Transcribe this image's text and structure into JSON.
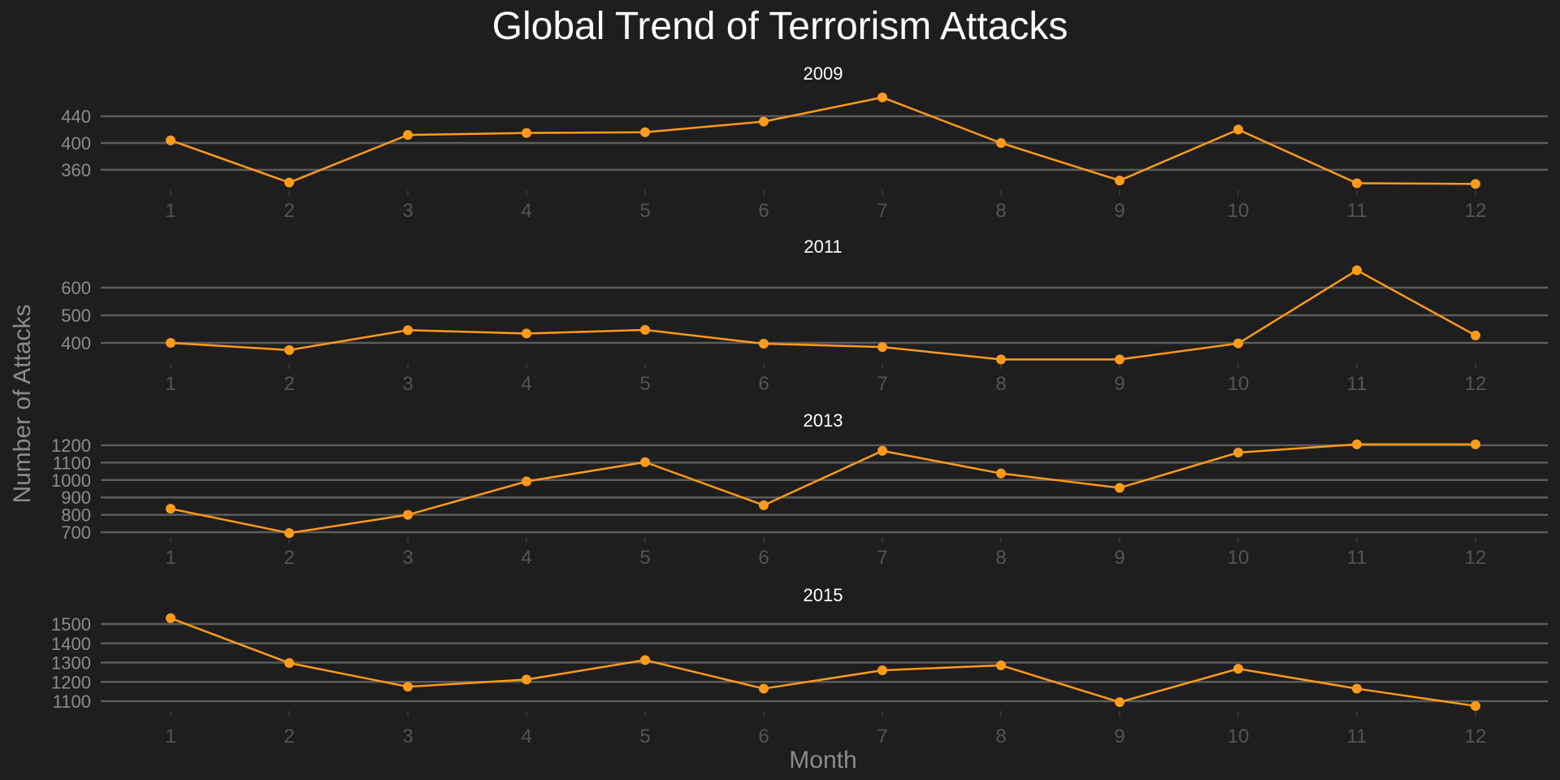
{
  "chart_data": {
    "type": "line",
    "title": "Global Trend of Terrorism Attacks",
    "xlabel": "Month",
    "ylabel": "Number of Attacks",
    "grid": true,
    "x": [
      1,
      2,
      3,
      4,
      5,
      6,
      7,
      8,
      9,
      10,
      11,
      12
    ],
    "colors": {
      "background": "#1e1e1e",
      "line": "#ff9a1a",
      "grid": "#5c5c5c"
    },
    "panels": [
      {
        "title": "2009",
        "yticks": [
          360,
          400,
          440
        ],
        "values": [
          404,
          341,
          412,
          415,
          416,
          432,
          468,
          400,
          344,
          420,
          340,
          339
        ]
      },
      {
        "title": "2011",
        "yticks": [
          400,
          500,
          600
        ],
        "values": [
          400,
          374,
          446,
          434,
          447,
          397,
          385,
          340,
          340,
          398,
          663,
          427
        ]
      },
      {
        "title": "2013",
        "yticks": [
          700,
          800,
          900,
          1000,
          1100,
          1200
        ],
        "values": [
          835,
          695,
          800,
          992,
          1103,
          855,
          1168,
          1038,
          955,
          1158,
          1205,
          1205
        ]
      },
      {
        "title": "2015",
        "yticks": [
          1100,
          1200,
          1300,
          1400,
          1500
        ],
        "values": [
          1530,
          1298,
          1175,
          1212,
          1313,
          1165,
          1260,
          1286,
          1095,
          1268,
          1165,
          1075
        ]
      }
    ]
  }
}
